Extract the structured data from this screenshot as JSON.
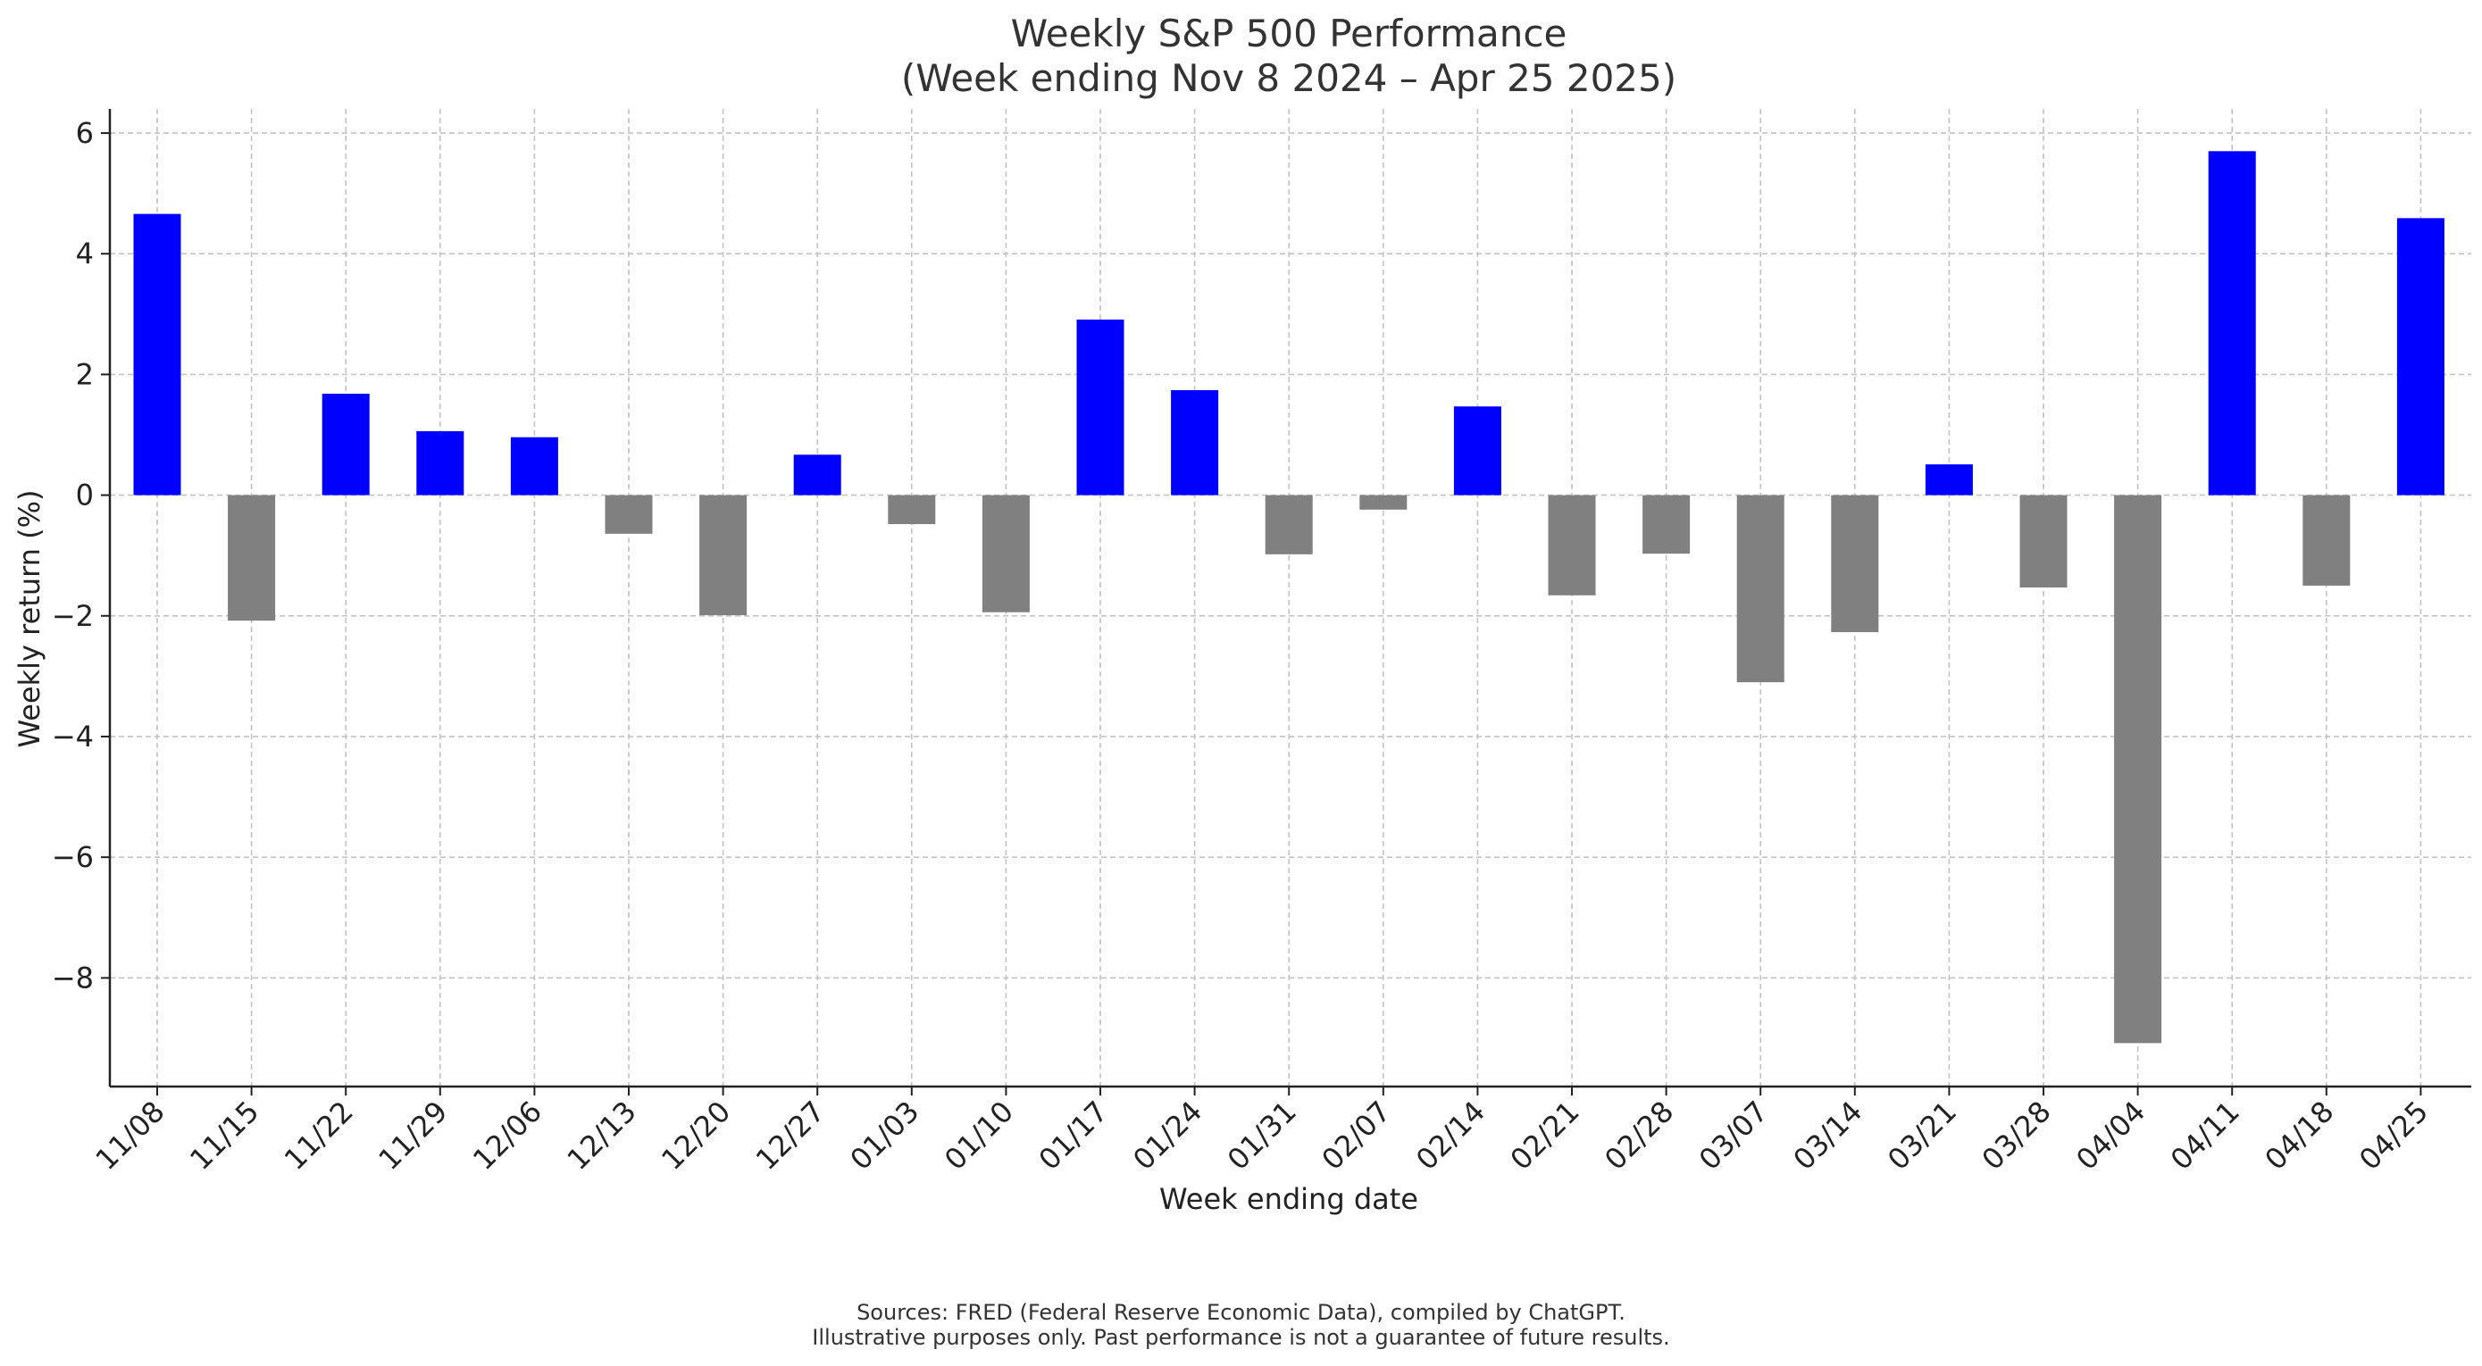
{
  "chart_data": {
    "type": "bar",
    "title_line1": "Weekly S&P 500 Performance",
    "title_line2": "(Week ending Nov 8 2024 – Apr 25 2025)",
    "xlabel": "Week ending date",
    "ylabel": "Weekly return (%)",
    "ylim": [
      -9.8,
      6.4
    ],
    "yticks": [
      6,
      4,
      2,
      0,
      -2,
      -4,
      -6,
      -8
    ],
    "ytick_labels": [
      "6",
      "4",
      "2",
      "0",
      "−2",
      "−4",
      "−6",
      "−8"
    ],
    "grid": true,
    "categories": [
      "11/08",
      "11/15",
      "11/22",
      "11/29",
      "12/06",
      "12/13",
      "12/20",
      "12/27",
      "01/03",
      "01/10",
      "01/17",
      "01/24",
      "01/31",
      "02/07",
      "02/14",
      "02/21",
      "02/28",
      "03/07",
      "03/14",
      "03/21",
      "03/28",
      "04/04",
      "04/11",
      "04/18",
      "04/25"
    ],
    "values": [
      4.66,
      -2.08,
      1.68,
      1.06,
      0.96,
      -0.64,
      -1.99,
      0.67,
      -0.48,
      -1.94,
      2.91,
      1.74,
      -0.98,
      -0.24,
      1.47,
      -1.66,
      -0.97,
      -3.1,
      -2.27,
      0.51,
      -1.53,
      -9.08,
      5.7,
      -1.5,
      4.59
    ],
    "colors": {
      "positive": "#0000ff",
      "negative": "#808080"
    }
  },
  "footnote": {
    "line1": "Sources: FRED (Federal Reserve Economic Data), compiled by ChatGPT.",
    "line2": "Illustrative purposes only. Past performance is not a guarantee of future results."
  }
}
